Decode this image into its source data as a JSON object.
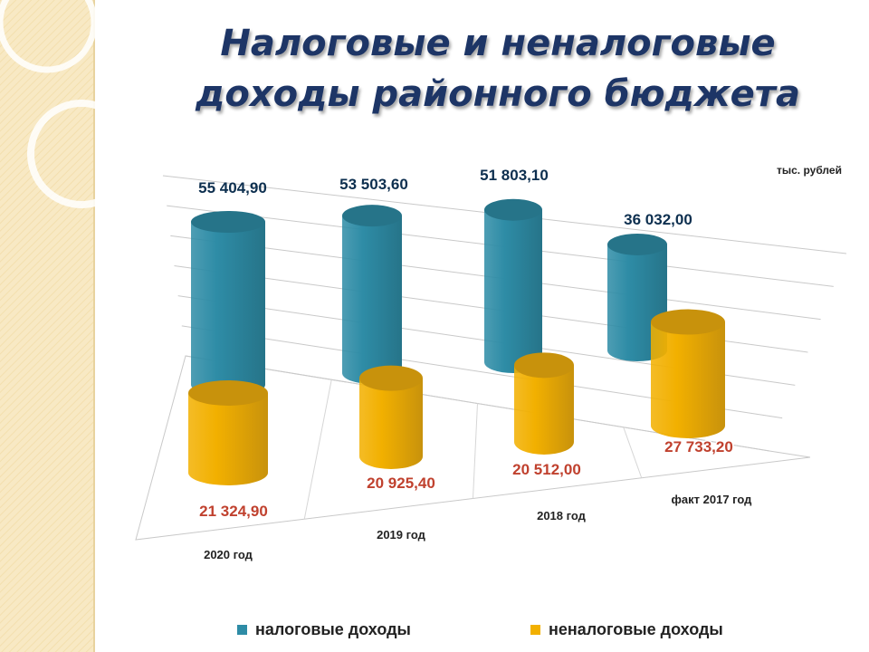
{
  "title_line1": "Налоговые и неналоговые",
  "title_line2": "доходы районного бюджета",
  "unit": "тыс. рублей",
  "colors": {
    "tax": "#2e8ca6",
    "tax_top": "#267489",
    "nontax": "#f2b000",
    "nontax_top": "#c8920c",
    "panel": "#f8e9c4"
  },
  "chart_data": {
    "type": "bar",
    "style": "3d-cylinder",
    "categories": [
      "2020 год",
      "2019 год",
      "2018 год",
      "факт 2017 год"
    ],
    "series": [
      {
        "name": "налоговые доходы",
        "values": [
          55404.9,
          53503.6,
          51803.1,
          36032.0
        ],
        "labels": [
          "55 404,90",
          "53 503,60",
          "51 803,10",
          "36 032,00"
        ]
      },
      {
        "name": "неналоговые доходы",
        "values": [
          21324.9,
          20925.4,
          20512.0,
          27733.2
        ],
        "labels": [
          "21 324,90",
          "20 925,40",
          "20 512,00",
          "27 733,20"
        ]
      }
    ],
    "ylim": [
      0,
      60000
    ],
    "grid": true,
    "legend_position": "bottom"
  }
}
